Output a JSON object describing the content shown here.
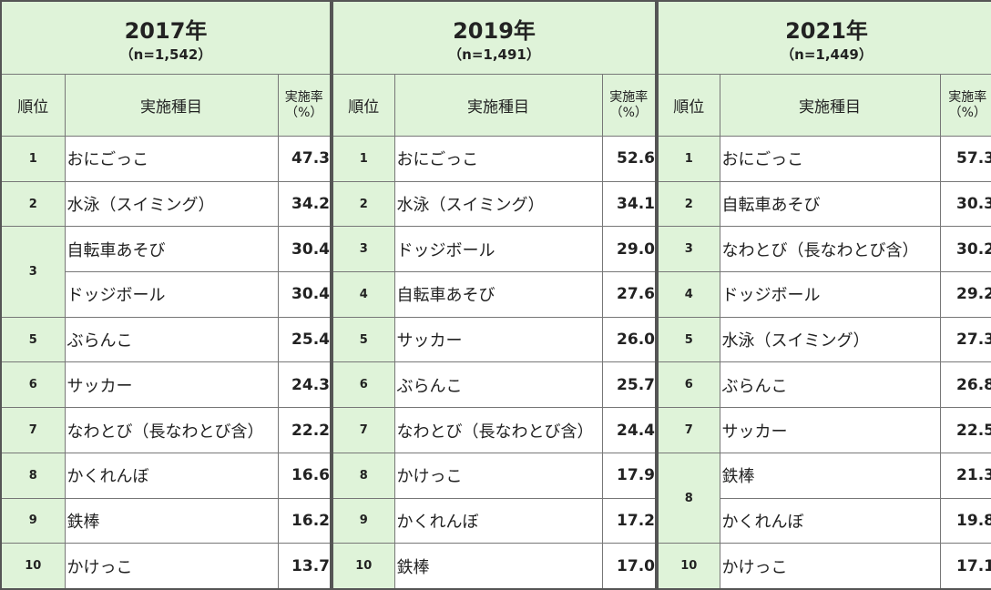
{
  "panels": [
    {
      "title": "2017年",
      "n": "（n=1,542）",
      "headers": {
        "rank": "順位",
        "item": "実施種目",
        "rate": "実施率",
        "unit": "（%）"
      },
      "rows": [
        [
          "1",
          "おにごっこ",
          "47.3"
        ],
        [
          "2",
          "水泳（スイミング）",
          "34.2"
        ],
        [
          "3",
          "自転車あそび",
          "30.4"
        ],
        [
          null,
          "ドッジボール",
          "30.4"
        ],
        [
          "5",
          "ぶらんこ",
          "25.4"
        ],
        [
          "6",
          "サッカー",
          "24.3"
        ],
        [
          "7",
          "なわとび（長なわとび含）",
          "22.2"
        ],
        [
          "8",
          "かくれんぼ",
          "16.6"
        ],
        [
          "9",
          "鉄棒",
          "16.2"
        ],
        [
          "10",
          "かけっこ",
          "13.7"
        ]
      ]
    },
    {
      "title": "2019年",
      "n": "（n=1,491）",
      "headers": {
        "rank": "順位",
        "item": "実施種目",
        "rate": "実施率",
        "unit": "（%）"
      },
      "rows": [
        [
          "1",
          "おにごっこ",
          "52.6"
        ],
        [
          "2",
          "水泳（スイミング）",
          "34.1"
        ],
        [
          "3",
          "ドッジボール",
          "29.0"
        ],
        [
          "4",
          "自転車あそび",
          "27.6"
        ],
        [
          "5",
          "サッカー",
          "26.0"
        ],
        [
          "6",
          "ぶらんこ",
          "25.7"
        ],
        [
          "7",
          "なわとび（長なわとび含）",
          "24.4"
        ],
        [
          "8",
          "かけっこ",
          "17.9"
        ],
        [
          "9",
          "かくれんぼ",
          "17.2"
        ],
        [
          "10",
          "鉄棒",
          "17.0"
        ]
      ]
    },
    {
      "title": "2021年",
      "n": "（n=1,449）",
      "headers": {
        "rank": "順位",
        "item": "実施種目",
        "rate": "実施率",
        "unit": "（%）"
      },
      "rows": [
        [
          "1",
          "おにごっこ",
          "57.3"
        ],
        [
          "2",
          "自転車あそび",
          "30.3"
        ],
        [
          "3",
          "なわとび（長なわとび含）",
          "30.2"
        ],
        [
          "4",
          "ドッジボール",
          "29.2"
        ],
        [
          "5",
          "水泳（スイミング）",
          "27.3"
        ],
        [
          "6",
          "ぶらんこ",
          "26.8"
        ],
        [
          "7",
          "サッカー",
          "22.5"
        ],
        [
          "8",
          "鉄棒",
          "21.3"
        ],
        [
          null,
          "かくれんぼ",
          "19.8"
        ],
        [
          "10",
          "かけっこ",
          "17.1"
        ]
      ]
    }
  ]
}
